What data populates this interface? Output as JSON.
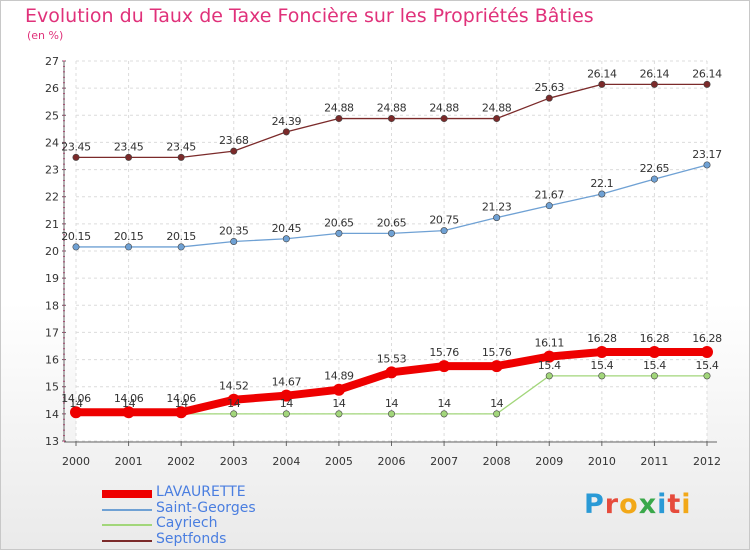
{
  "header": {
    "title": "Evolution du Taux de Taxe Foncière sur les Propriétés Bâties",
    "unit": "(en %)"
  },
  "logo": {
    "letters": [
      "P",
      "r",
      "o",
      "x",
      "i",
      "t",
      "i"
    ],
    "colors": [
      "#2a9ad6",
      "#e64b3c",
      "#f2a818",
      "#3aa84a",
      "#2a9ad6",
      "#e64b3c",
      "#f2a818"
    ]
  },
  "chart_data": {
    "type": "line",
    "title": "Evolution du Taux de Taxe Foncière sur les Propriétés Bâties",
    "ylabel": "(en %)",
    "xlabel": "",
    "x": [
      "2000",
      "2001",
      "2002",
      "2003",
      "2004",
      "2005",
      "2006",
      "2007",
      "2008",
      "2009",
      "2010",
      "2011",
      "2012"
    ],
    "ylim": [
      13,
      27
    ],
    "yticks": [
      "13",
      "14",
      "15",
      "16",
      "17",
      "18",
      "19",
      "20",
      "21",
      "22",
      "23",
      "24",
      "25",
      "26",
      "27"
    ],
    "grid": true,
    "legend_position": "bottom-left",
    "series": [
      {
        "name": "Septfonds",
        "color": "#7b2a2a",
        "values": [
          23.45,
          23.45,
          23.45,
          23.68,
          24.39,
          24.88,
          24.88,
          24.88,
          24.88,
          25.63,
          26.14,
          26.14,
          26.14
        ],
        "labels": [
          "23.45",
          "23.45",
          "23.45",
          "23.68",
          "24.39",
          "24.88",
          "24.88",
          "24.88",
          "24.88",
          "25.63",
          "26.14",
          "26.14",
          "26.14"
        ]
      },
      {
        "name": "Saint-Georges",
        "color": "#6fa1d4",
        "values": [
          20.15,
          20.15,
          20.15,
          20.35,
          20.45,
          20.65,
          20.65,
          20.75,
          21.23,
          21.67,
          22.1,
          22.65,
          23.17
        ],
        "labels": [
          "20.15",
          "20.15",
          "20.15",
          "20.35",
          "20.45",
          "20.65",
          "20.65",
          "20.75",
          "21.23",
          "21.67",
          "22.1",
          "22.65",
          "23.17"
        ]
      },
      {
        "name": "Cayriech",
        "color": "#a2d67a",
        "values": [
          14,
          14,
          14,
          14,
          14,
          14,
          14,
          14,
          14,
          15.4,
          15.4,
          15.4,
          15.4
        ],
        "labels": [
          "14",
          "14",
          "14",
          "14",
          "14",
          "14",
          "14",
          "14",
          "14",
          "15.4",
          "15.4",
          "15.4",
          "15.4"
        ]
      },
      {
        "name": "LAVAURETTE",
        "color": "#ee0000",
        "values": [
          14.06,
          14.06,
          14.06,
          14.52,
          14.67,
          14.89,
          15.53,
          15.76,
          15.76,
          16.11,
          16.28,
          16.28,
          16.28
        ],
        "labels": [
          "14.06",
          "14.06",
          "14.06",
          "14.52",
          "14.67",
          "14.89",
          "15.53",
          "15.76",
          "15.76",
          "16.11",
          "16.28",
          "16.28",
          "16.28"
        ]
      }
    ],
    "legend": [
      "LAVAURETTE",
      "Saint-Georges",
      "Cayriech",
      "Septfonds"
    ]
  }
}
